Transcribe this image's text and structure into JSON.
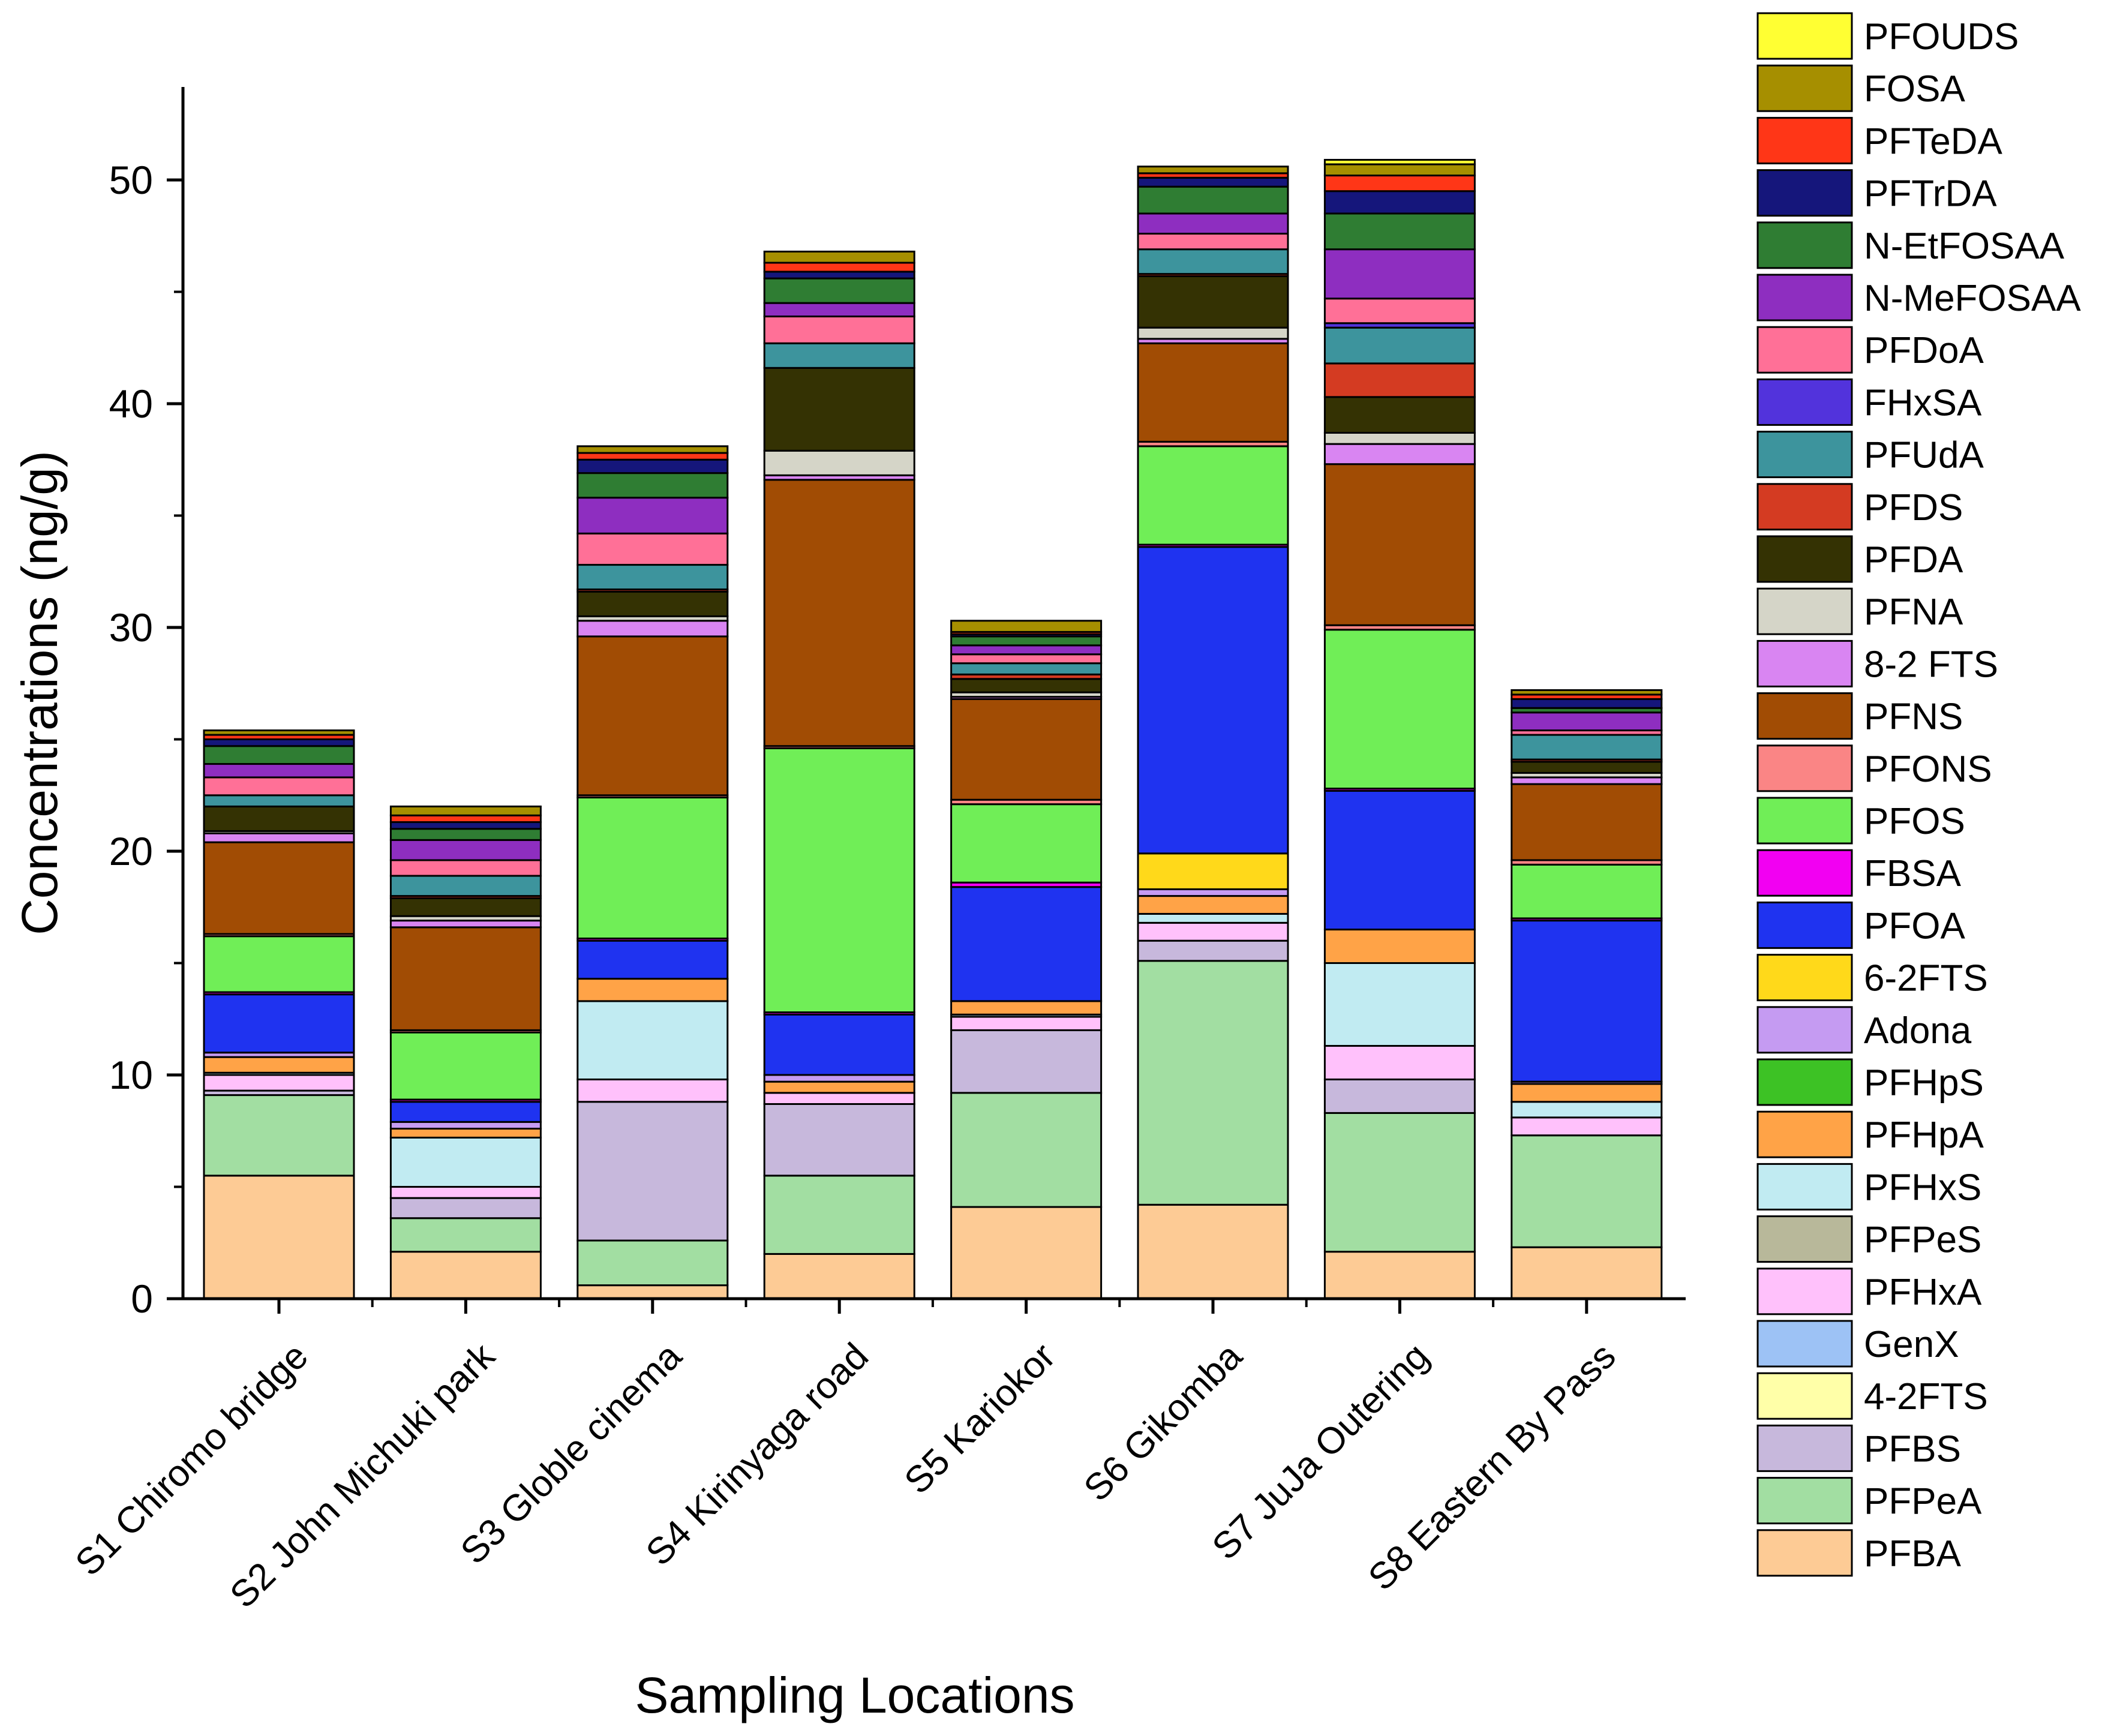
{
  "chart_data": {
    "type": "bar",
    "stacked": true,
    "title": "",
    "xlabel": "Sampling Locations",
    "ylabel": "Concentrations (ng/g)",
    "ylim": [
      0,
      54
    ],
    "yticks": [
      0,
      10,
      20,
      30,
      40,
      50
    ],
    "legend_position": "right",
    "categories": [
      "S1 Chiromo bridge",
      "S2 John Michuki park",
      "S3 Globle cinema",
      "S4 Kirinyaga road",
      "S5 Kariokor",
      "S6 Gikomba",
      "S7 JuJa Outering",
      "S8 Eastern By Pass"
    ],
    "series": [
      {
        "name": "PFBA",
        "color": "#FDCB95",
        "values": [
          5.5,
          2.1,
          0.6,
          2.0,
          4.1,
          4.2,
          2.1,
          2.3
        ]
      },
      {
        "name": "PFPeA",
        "color": "#A2DEA2",
        "values": [
          3.6,
          1.5,
          2.0,
          3.5,
          5.1,
          10.9,
          6.2,
          5.0
        ]
      },
      {
        "name": "PFBS",
        "color": "#C7B8DC",
        "values": [
          0.2,
          0.9,
          6.2,
          3.2,
          2.8,
          0.9,
          1.5,
          0.0
        ]
      },
      {
        "name": "4-2FTS",
        "color": "#FFFFA8",
        "values": [
          0.0,
          0.0,
          0.0,
          0.0,
          0.0,
          0.0,
          0.0,
          0.0
        ]
      },
      {
        "name": "GenX",
        "color": "#9DC2F5",
        "values": [
          0.0,
          0.0,
          0.0,
          0.0,
          0.0,
          0.0,
          0.0,
          0.0
        ]
      },
      {
        "name": "PFHxA",
        "color": "#FFC1FB",
        "values": [
          0.7,
          0.5,
          1.0,
          0.5,
          0.6,
          0.8,
          1.5,
          0.8
        ]
      },
      {
        "name": "PFPeS",
        "color": "#B8B89A",
        "values": [
          0.0,
          0.0,
          0.0,
          0.0,
          0.0,
          0.0,
          0.0,
          0.0
        ]
      },
      {
        "name": "PFHxS",
        "color": "#C1EBF2",
        "values": [
          0.1,
          2.2,
          3.5,
          0.0,
          0.1,
          0.4,
          3.7,
          0.7
        ]
      },
      {
        "name": "PFHpA",
        "color": "#FFA347",
        "values": [
          0.7,
          0.4,
          1.0,
          0.5,
          0.6,
          0.8,
          1.5,
          0.8
        ]
      },
      {
        "name": "PFHpS",
        "color": "#3DC225",
        "values": [
          0.0,
          0.0,
          0.0,
          0.0,
          0.0,
          0.0,
          0.0,
          0.0
        ]
      },
      {
        "name": "Adona",
        "color": "#C59BF2",
        "values": [
          0.2,
          0.3,
          0.0,
          0.3,
          0.0,
          0.3,
          0.0,
          0.1
        ]
      },
      {
        "name": "6-2FTS",
        "color": "#FFD91A",
        "values": [
          0.0,
          0.0,
          0.0,
          0.0,
          0.0,
          1.6,
          0.0,
          0.0
        ]
      },
      {
        "name": "PFOA",
        "color": "#1F33F0",
        "values": [
          2.6,
          0.9,
          1.7,
          2.7,
          5.1,
          13.7,
          6.2,
          7.2
        ]
      },
      {
        "name": "FBSA",
        "color": "#F200F2",
        "values": [
          0.1,
          0.1,
          0.1,
          0.1,
          0.2,
          0.1,
          0.1,
          0.1
        ]
      },
      {
        "name": "PFOS",
        "color": "#70EE57",
        "values": [
          2.5,
          3.0,
          6.3,
          11.8,
          3.5,
          4.4,
          7.1,
          2.4
        ]
      },
      {
        "name": "PFONS",
        "color": "#FA8585",
        "values": [
          0.1,
          0.1,
          0.1,
          0.1,
          0.2,
          0.2,
          0.2,
          0.2
        ]
      },
      {
        "name": "PFNS",
        "color": "#A14C04",
        "values": [
          4.1,
          4.6,
          7.1,
          11.9,
          4.5,
          4.4,
          7.2,
          3.4
        ]
      },
      {
        "name": "8-2 FTS",
        "color": "#D985F2",
        "values": [
          0.4,
          0.3,
          0.7,
          0.2,
          0.1,
          0.2,
          0.9,
          0.3
        ]
      },
      {
        "name": "PFNA",
        "color": "#D5D5C8",
        "values": [
          0.1,
          0.2,
          0.2,
          1.1,
          0.2,
          0.5,
          0.5,
          0.2
        ]
      },
      {
        "name": "PFDA",
        "color": "#343203",
        "values": [
          1.1,
          0.8,
          1.1,
          3.7,
          0.6,
          2.3,
          1.6,
          0.5
        ]
      },
      {
        "name": "PFDS",
        "color": "#D43B22",
        "values": [
          0.0,
          0.1,
          0.1,
          0.0,
          0.2,
          0.1,
          1.5,
          0.1
        ]
      },
      {
        "name": "PFUdA",
        "color": "#3D949D",
        "values": [
          0.5,
          0.9,
          1.1,
          1.1,
          0.5,
          1.1,
          1.6,
          1.1
        ]
      },
      {
        "name": "FHxSA",
        "color": "#5233DC",
        "values": [
          0.0,
          0.0,
          0.0,
          0.0,
          0.0,
          0.0,
          0.2,
          0.0
        ]
      },
      {
        "name": "PFDoA",
        "color": "#FF7097",
        "values": [
          0.8,
          0.7,
          1.4,
          1.2,
          0.4,
          0.7,
          1.1,
          0.2
        ]
      },
      {
        "name": "N-MeFOSAA",
        "color": "#8E2EC0",
        "values": [
          0.6,
          0.9,
          1.6,
          0.6,
          0.4,
          0.9,
          2.2,
          0.8
        ]
      },
      {
        "name": "N-EtFOSAA",
        "color": "#2F7D33",
        "values": [
          0.8,
          0.5,
          1.1,
          1.1,
          0.4,
          1.2,
          1.6,
          0.2
        ]
      },
      {
        "name": "PFTrDA",
        "color": "#15167B",
        "values": [
          0.3,
          0.3,
          0.6,
          0.3,
          0.1,
          0.4,
          1.0,
          0.4
        ]
      },
      {
        "name": "PFTeDA",
        "color": "#FF3617",
        "values": [
          0.2,
          0.3,
          0.3,
          0.4,
          0.1,
          0.2,
          0.7,
          0.2
        ]
      },
      {
        "name": "FOSA",
        "color": "#A68F00",
        "values": [
          0.2,
          0.4,
          0.3,
          0.5,
          0.5,
          0.3,
          0.5,
          0.2
        ]
      },
      {
        "name": "PFOUDS",
        "color": "#FFFF33",
        "values": [
          0.0,
          0.0,
          0.0,
          0.0,
          0.0,
          0.0,
          0.2,
          0.0
        ]
      }
    ]
  }
}
